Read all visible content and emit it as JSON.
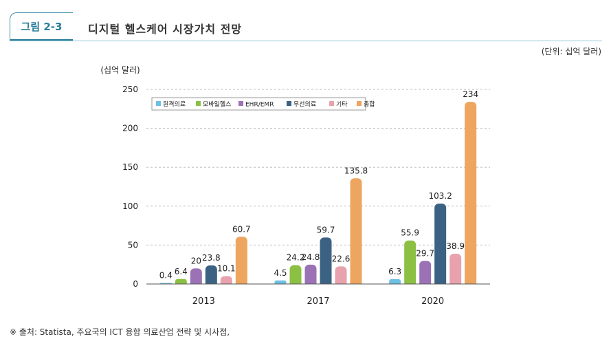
{
  "header": {
    "figure_label": "그림 2-3",
    "title": "디지털 헬스케어 시장가치 전망"
  },
  "unit_note": "(단위: 십억 달러)",
  "source_note": "※ 출처: Statista, 주요국의 ICT 융합 의료산업 전략 및 시사점,",
  "chart_data": {
    "type": "bar",
    "ylabel": "(십억 달러)",
    "xlabel": "",
    "title": "",
    "categories": [
      "2013",
      "2017",
      "2020"
    ],
    "ylim": [
      0,
      250
    ],
    "yticks": [
      0,
      50,
      100,
      150,
      200,
      250
    ],
    "grid": true,
    "legend_position": "top-left",
    "series": [
      {
        "name": "원격의료",
        "color": "#6cc0e3",
        "values": [
          0.4,
          4.5,
          6.3
        ]
      },
      {
        "name": "모바일헬스",
        "color": "#8cc043",
        "values": [
          6.4,
          24.2,
          55.9
        ]
      },
      {
        "name": "EHR/EMR",
        "color": "#9b72b5",
        "values": [
          20,
          24.8,
          29.7
        ]
      },
      {
        "name": "무선의료",
        "color": "#3c6283",
        "values": [
          23.8,
          59.7,
          103.2
        ]
      },
      {
        "name": "기타",
        "color": "#e8a2ad",
        "values": [
          10.1,
          22.6,
          38.9
        ]
      },
      {
        "name": "총합",
        "color": "#eea560",
        "values": [
          60.7,
          135.8,
          234
        ]
      }
    ]
  }
}
